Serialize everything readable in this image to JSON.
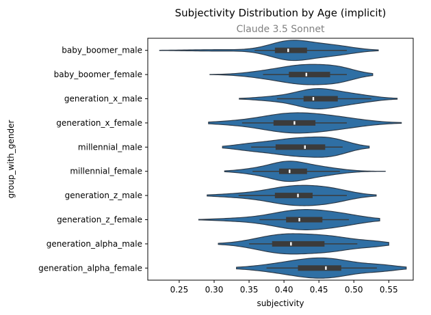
{
  "chart_data": {
    "type": "violin",
    "orientation": "horizontal",
    "title": "Subjectivity Distribution by Age (implicit)",
    "subtitle": "Claude 3.5 Sonnet",
    "xlabel": "subjectivity",
    "ylabel": "group_with_gender",
    "xlim": [
      0.205,
      0.585
    ],
    "xticks": [
      0.25,
      0.3,
      0.35,
      0.4,
      0.45,
      0.5,
      0.55
    ],
    "xtick_labels": [
      "0.25",
      "0.30",
      "0.35",
      "0.40",
      "0.45",
      "0.50",
      "0.55"
    ],
    "grid": false,
    "fill_color": "#2f6fa4",
    "edge_color": "#2d3a48",
    "box_color": "#3b3b3b",
    "median_color": "#ffffff",
    "categories": [
      "baby_boomer_male",
      "baby_boomer_female",
      "generation_x_male",
      "generation_x_female",
      "millennial_male",
      "millennial_female",
      "generation_z_male",
      "generation_z_female",
      "generation_alpha_male",
      "generation_alpha_female"
    ],
    "stats": [
      {
        "min": 0.222,
        "max": 0.535,
        "q1": 0.387,
        "median": 0.406,
        "q3": 0.433,
        "whisker_low": 0.358,
        "whisker_high": 0.49
      },
      {
        "min": 0.294,
        "max": 0.527,
        "q1": 0.407,
        "median": 0.432,
        "q3": 0.466,
        "whisker_low": 0.37,
        "whisker_high": 0.49
      },
      {
        "min": 0.336,
        "max": 0.562,
        "q1": 0.428,
        "median": 0.442,
        "q3": 0.477,
        "whisker_low": 0.39,
        "whisker_high": 0.525
      },
      {
        "min": 0.292,
        "max": 0.568,
        "q1": 0.385,
        "median": 0.415,
        "q3": 0.445,
        "whisker_low": 0.34,
        "whisker_high": 0.49
      },
      {
        "min": 0.312,
        "max": 0.522,
        "q1": 0.388,
        "median": 0.43,
        "q3": 0.459,
        "whisker_low": 0.353,
        "whisker_high": 0.484
      },
      {
        "min": 0.315,
        "max": 0.545,
        "q1": 0.393,
        "median": 0.408,
        "q3": 0.433,
        "whisker_low": 0.355,
        "whisker_high": 0.48
      },
      {
        "min": 0.29,
        "max": 0.532,
        "q1": 0.387,
        "median": 0.42,
        "q3": 0.441,
        "whisker_low": 0.335,
        "whisker_high": 0.49
      },
      {
        "min": 0.278,
        "max": 0.537,
        "q1": 0.403,
        "median": 0.422,
        "q3": 0.455,
        "whisker_low": 0.365,
        "whisker_high": 0.493
      },
      {
        "min": 0.306,
        "max": 0.55,
        "q1": 0.383,
        "median": 0.41,
        "q3": 0.458,
        "whisker_low": 0.35,
        "whisker_high": 0.505
      },
      {
        "min": 0.332,
        "max": 0.575,
        "q1": 0.42,
        "median": 0.46,
        "q3": 0.482,
        "whisker_low": 0.375,
        "whisker_high": 0.533
      }
    ],
    "density_peaks": [
      [
        [
          0.41,
          0.95,
          0.03
        ],
        [
          0.47,
          0.45,
          0.03
        ],
        [
          0.3,
          0.07,
          0.04
        ]
      ],
      [
        [
          0.43,
          0.85,
          0.035
        ],
        [
          0.48,
          0.45,
          0.025
        ],
        [
          0.37,
          0.2,
          0.03
        ]
      ],
      [
        [
          0.445,
          0.9,
          0.03
        ],
        [
          0.5,
          0.35,
          0.03
        ],
        [
          0.38,
          0.15,
          0.025
        ]
      ],
      [
        [
          0.41,
          0.85,
          0.045
        ],
        [
          0.48,
          0.35,
          0.04
        ],
        [
          0.32,
          0.08,
          0.03
        ]
      ],
      [
        [
          0.42,
          0.85,
          0.04
        ],
        [
          0.47,
          0.5,
          0.025
        ],
        [
          0.35,
          0.2,
          0.025
        ]
      ],
      [
        [
          0.405,
          0.95,
          0.025
        ],
        [
          0.45,
          0.45,
          0.03
        ],
        [
          0.36,
          0.25,
          0.025
        ]
      ],
      [
        [
          0.415,
          0.9,
          0.04
        ],
        [
          0.47,
          0.4,
          0.03
        ],
        [
          0.33,
          0.12,
          0.03
        ]
      ],
      [
        [
          0.42,
          0.85,
          0.04
        ],
        [
          0.48,
          0.4,
          0.035
        ],
        [
          0.33,
          0.1,
          0.03
        ]
      ],
      [
        [
          0.4,
          0.85,
          0.04
        ],
        [
          0.47,
          0.55,
          0.035
        ],
        [
          0.53,
          0.15,
          0.02
        ]
      ],
      [
        [
          0.46,
          0.95,
          0.04
        ],
        [
          0.4,
          0.35,
          0.04
        ],
        [
          0.54,
          0.25,
          0.025
        ]
      ]
    ]
  }
}
